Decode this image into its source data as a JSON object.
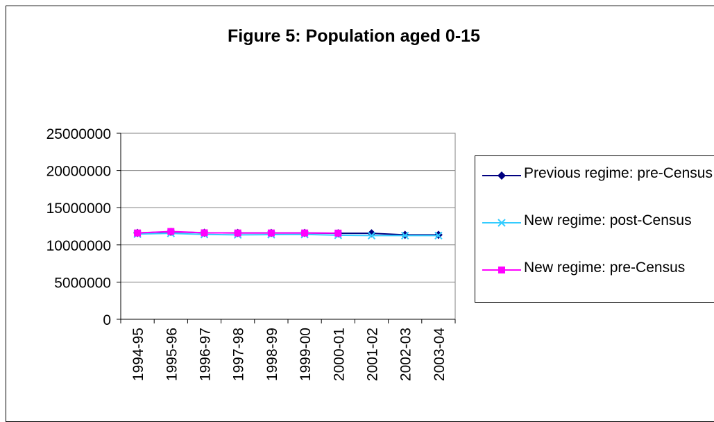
{
  "chart_data": {
    "type": "line",
    "title": "Figure 5: Population aged 0-15",
    "categories": [
      "1994-95",
      "1995-96",
      "1996-97",
      "1997-98",
      "1998-99",
      "1999-00",
      "2000-01",
      "2001-02",
      "2002-03",
      "2003-04"
    ],
    "ylim": [
      0,
      25000000
    ],
    "yticks": [
      "0",
      "5000000",
      "10000000",
      "15000000",
      "20000000",
      "25000000"
    ],
    "grid": true,
    "legend": "right",
    "series": [
      {
        "name": "Previous regime: pre-Census",
        "line_color": "#000080",
        "marker_color": "#000080",
        "marker": "diamond",
        "values": [
          11600000,
          11750000,
          11620000,
          11600000,
          11600000,
          11600000,
          11560000,
          11550000,
          11350000,
          11350000
        ]
      },
      {
        "name": "New regime: post-Census",
        "line_color": "#33ccff",
        "marker_color": "#33ccff",
        "marker": "x",
        "values": [
          11450000,
          11550000,
          11400000,
          11350000,
          11380000,
          11400000,
          11300000,
          11250000,
          11250000,
          11250000
        ]
      },
      {
        "name": "New regime: pre-Census",
        "line_color": "#ff00ff",
        "marker_color": "#ff00ff",
        "marker": "square",
        "values": [
          11600000,
          11800000,
          11620000,
          11600000,
          11600000,
          11600000,
          11580000,
          null,
          null,
          null
        ]
      }
    ]
  }
}
